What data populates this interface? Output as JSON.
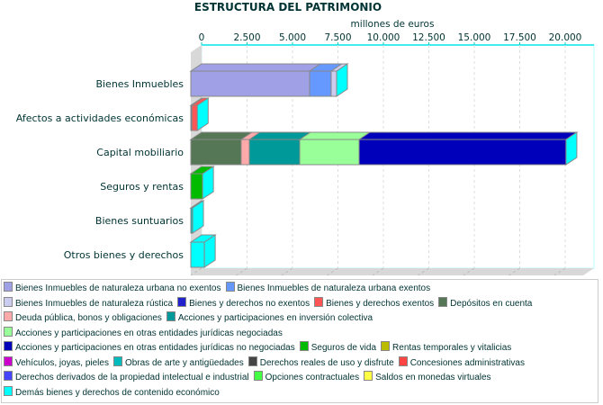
{
  "chart_data": {
    "type": "bar",
    "orientation": "horizontal-stacked-3d",
    "title": "ESTRUCTURA DEL PATRIMONIO",
    "xlabel": "millones de euros",
    "xlim": [
      0,
      21000
    ],
    "xticks": [
      "0",
      "2.500",
      "5.000",
      "7.500",
      "10.000",
      "12.500",
      "15.000",
      "17.500",
      "20.000"
    ],
    "xtick_values": [
      0,
      2500,
      5000,
      7500,
      10000,
      12500,
      15000,
      17500,
      20000
    ],
    "grid": true,
    "legend_position": "bottom",
    "categories": [
      "Bienes Inmuebles",
      "Afectos a actividades económicas",
      "Capital mobiliario",
      "Seguros y rentas",
      "Bienes suntuarios",
      "Otros bienes y derechos"
    ],
    "series": [
      {
        "name": "Bienes Inmuebles de naturaleza urbana no exentos",
        "color": "#a0a0e6",
        "values": [
          6535,
          0,
          0,
          0,
          0,
          0
        ]
      },
      {
        "name": "Bienes Inmuebles de naturaleza urbana exentos",
        "color": "#6699ff",
        "values": [
          1185,
          0,
          0,
          0,
          0,
          0
        ]
      },
      {
        "name": "Bienes Inmuebles de naturaleza rústica",
        "color": "#ccccf0",
        "values": [
          300,
          0,
          0,
          0,
          0,
          0
        ]
      },
      {
        "name": "Bienes y derechos no exentos",
        "color": "#2222cc",
        "values": [
          0,
          60,
          0,
          0,
          0,
          0
        ]
      },
      {
        "name": "Bienes y derechos exentos",
        "color": "#ff5555",
        "values": [
          0,
          300,
          0,
          0,
          0,
          0
        ]
      },
      {
        "name": "Depósitos en cuenta",
        "color": "#557755",
        "values": [
          0,
          0,
          2770,
          0,
          0,
          0
        ]
      },
      {
        "name": "Deuda pública, bonos y obligaciones",
        "color": "#ffaaaa",
        "values": [
          0,
          0,
          450,
          0,
          0,
          0
        ]
      },
      {
        "name": "Acciones y participaciones en inversión colectiva",
        "color": "#009999",
        "values": [
          0,
          0,
          2770,
          0,
          0,
          0
        ]
      },
      {
        "name": "Acciones y participaciones en otras entidades jurídicas negociadas",
        "color": "#99ff99",
        "values": [
          0,
          0,
          3270,
          0,
          0,
          0
        ]
      },
      {
        "name": "Acciones y participaciones en otras entidades jurídicas no negociadas",
        "color": "#0000bb",
        "values": [
          0,
          0,
          11380,
          0,
          0,
          0
        ]
      },
      {
        "name": "Seguros de vida",
        "color": "#00bb00",
        "values": [
          0,
          0,
          0,
          650,
          0,
          0
        ]
      },
      {
        "name": "Rentas temporales y vitalicias",
        "color": "#bbbb00",
        "values": [
          0,
          0,
          0,
          0,
          0,
          0
        ]
      },
      {
        "name": "Vehículos, joyas, pieles",
        "color": "#cc00cc",
        "values": [
          0,
          0,
          0,
          0,
          0,
          0
        ]
      },
      {
        "name": "Obras de arte y antigüedades",
        "color": "#00bbbb",
        "values": [
          0,
          0,
          0,
          0,
          100,
          0
        ]
      },
      {
        "name": "Derechos reales de uso y disfrute",
        "color": "#444444",
        "values": [
          0,
          0,
          0,
          0,
          0,
          0
        ]
      },
      {
        "name": "Concesiones administrativas",
        "color": "#ff4444",
        "values": [
          0,
          0,
          0,
          0,
          0,
          0
        ]
      },
      {
        "name": "Derechos derivados de la propiedad intelectual e industrial",
        "color": "#4444ff",
        "values": [
          0,
          0,
          0,
          0,
          0,
          0
        ]
      },
      {
        "name": "Opciones contractuales",
        "color": "#44ff44",
        "values": [
          0,
          0,
          0,
          0,
          0,
          0
        ]
      },
      {
        "name": "Saldos en monedas virtuales",
        "color": "#ffff44",
        "values": [
          0,
          0,
          0,
          0,
          0,
          0
        ]
      },
      {
        "name": "Demás bienes y derechos de contenido económico",
        "color": "#00ffff",
        "values": [
          0,
          0,
          0,
          0,
          0,
          750
        ]
      }
    ]
  }
}
